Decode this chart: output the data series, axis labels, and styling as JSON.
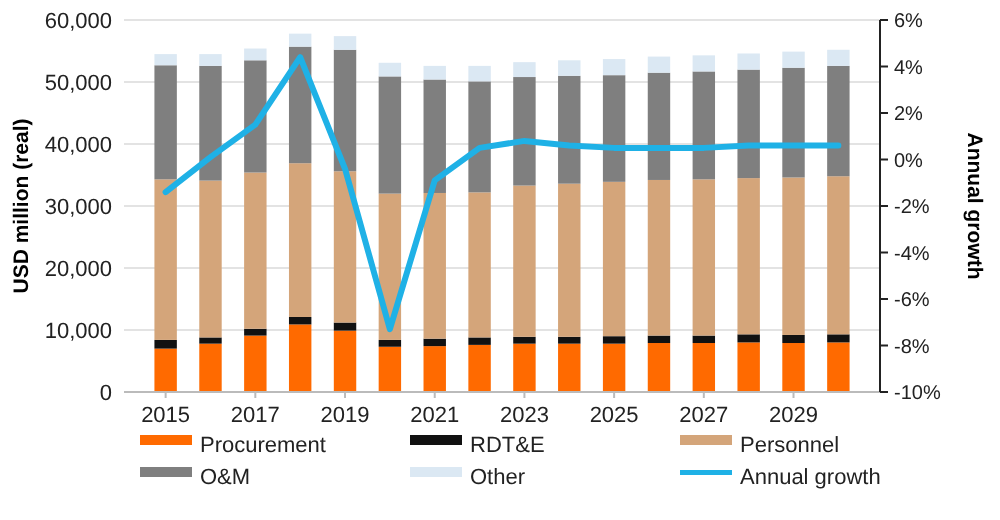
{
  "chart_data": {
    "type": "bar",
    "stacked": true,
    "ylabel": "USD million (real)",
    "y2label": "Annual growth",
    "categories": [
      "2015",
      null,
      "2017",
      null,
      "2019",
      null,
      "2021",
      null,
      "2023",
      null,
      "2025",
      null,
      "2027",
      null,
      "2029",
      null
    ],
    "ylim": [
      0,
      60000
    ],
    "yticks": [
      {
        "value": 0,
        "label": "0"
      },
      {
        "value": 10000,
        "label": "10,000"
      },
      {
        "value": 20000,
        "label": "20,000"
      },
      {
        "value": 30000,
        "label": "30,000"
      },
      {
        "value": 40000,
        "label": "40,000"
      },
      {
        "value": 50000,
        "label": "50,000"
      },
      {
        "value": 60000,
        "label": "60,000"
      }
    ],
    "y2lim": [
      -10,
      6
    ],
    "y2ticks": [
      {
        "value": -10,
        "label": "-10%"
      },
      {
        "value": -8,
        "label": "-8%"
      },
      {
        "value": -6,
        "label": "-6%"
      },
      {
        "value": -4,
        "label": "-4%"
      },
      {
        "value": -2,
        "label": "-2%"
      },
      {
        "value": 0,
        "label": "0%"
      },
      {
        "value": 2,
        "label": "2%"
      },
      {
        "value": 4,
        "label": "4%"
      },
      {
        "value": 6,
        "label": "6%"
      }
    ],
    "grid": "y",
    "legend": "bottom",
    "series": [
      {
        "name": "Procurement",
        "color": "#ff6a00",
        "values": [
          7000,
          7800,
          9100,
          10900,
          9900,
          7300,
          7400,
          7600,
          7800,
          7800,
          7800,
          7900,
          7900,
          8000,
          7900,
          8000
        ]
      },
      {
        "name": "RDT&E",
        "color": "#111111",
        "values": [
          1400,
          1000,
          1100,
          1200,
          1300,
          1100,
          1200,
          1200,
          1100,
          1100,
          1200,
          1200,
          1200,
          1300,
          1300,
          1300
        ]
      },
      {
        "name": "Personnel",
        "color": "#d4a57a",
        "values": [
          25900,
          25300,
          25200,
          24800,
          24400,
          23600,
          23500,
          23400,
          24400,
          24700,
          24900,
          25100,
          25200,
          25200,
          25400,
          25500
        ]
      },
      {
        "name": "O&M",
        "color": "#7f7f7f",
        "values": [
          18400,
          18500,
          18100,
          18800,
          19600,
          18900,
          18300,
          17900,
          17500,
          17400,
          17200,
          17300,
          17400,
          17500,
          17700,
          17800
        ]
      },
      {
        "name": "Other",
        "color": "#dbe8f3",
        "values": [
          1800,
          1900,
          1900,
          2100,
          2200,
          2200,
          2200,
          2500,
          2400,
          2500,
          2600,
          2600,
          2600,
          2600,
          2600,
          2600
        ]
      },
      {
        "name": "Annual growth",
        "type": "line",
        "axis": "y2",
        "color": "#1fb1e6",
        "values": [
          -1.4,
          0.1,
          1.5,
          4.4,
          -0.4,
          -7.3,
          -0.9,
          0.5,
          0.8,
          0.6,
          0.5,
          0.5,
          0.5,
          0.6,
          0.6,
          0.6
        ]
      }
    ]
  }
}
